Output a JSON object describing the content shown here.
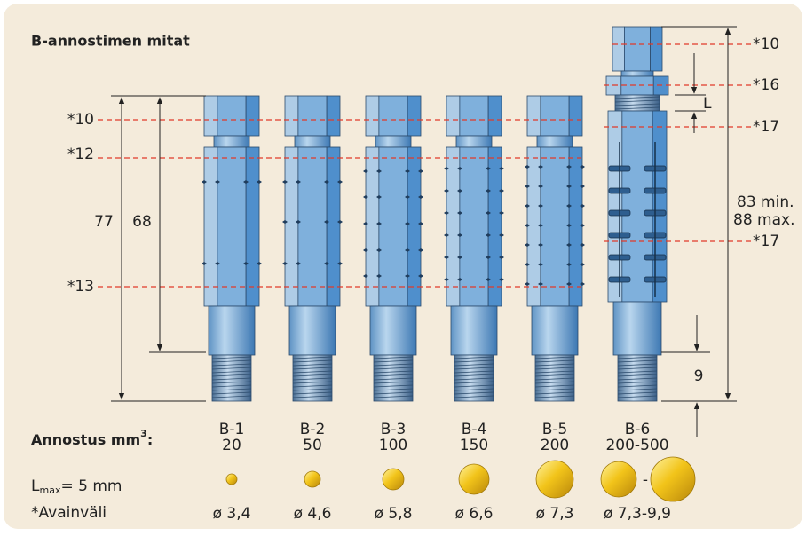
{
  "title": "B-annostimen mitat",
  "left_labels": [
    "*10",
    "*12",
    "*13"
  ],
  "left_dimensions": [
    "77",
    "68"
  ],
  "right_labels": [
    "*10",
    "*16",
    "*17",
    "*17"
  ],
  "right_dimensions": {
    "gap": "L",
    "length_min": "83 min.",
    "length_max": "88 max.",
    "thread": "9"
  },
  "dosage_label": {
    "text": "Annostus mm",
    "sup": "3",
    "suffix": ":"
  },
  "lmax": {
    "main": "L",
    "sub": "max",
    "rest": "= 5 mm"
  },
  "footnote": "*Avainväli",
  "range_separator": "-",
  "models": [
    {
      "name": "B-1",
      "dose": "20",
      "diameter": "ø 3,4"
    },
    {
      "name": "B-2",
      "dose": "50",
      "diameter": "ø 4,6"
    },
    {
      "name": "B-3",
      "dose": "100",
      "diameter": "ø 5,8"
    },
    {
      "name": "B-4",
      "dose": "150",
      "diameter": "ø 6,6"
    },
    {
      "name": "B-5",
      "dose": "200",
      "diameter": "ø 7,3"
    },
    {
      "name": "B-6",
      "dose": "200-500",
      "diameter": "ø 7,3-9,9"
    }
  ]
}
